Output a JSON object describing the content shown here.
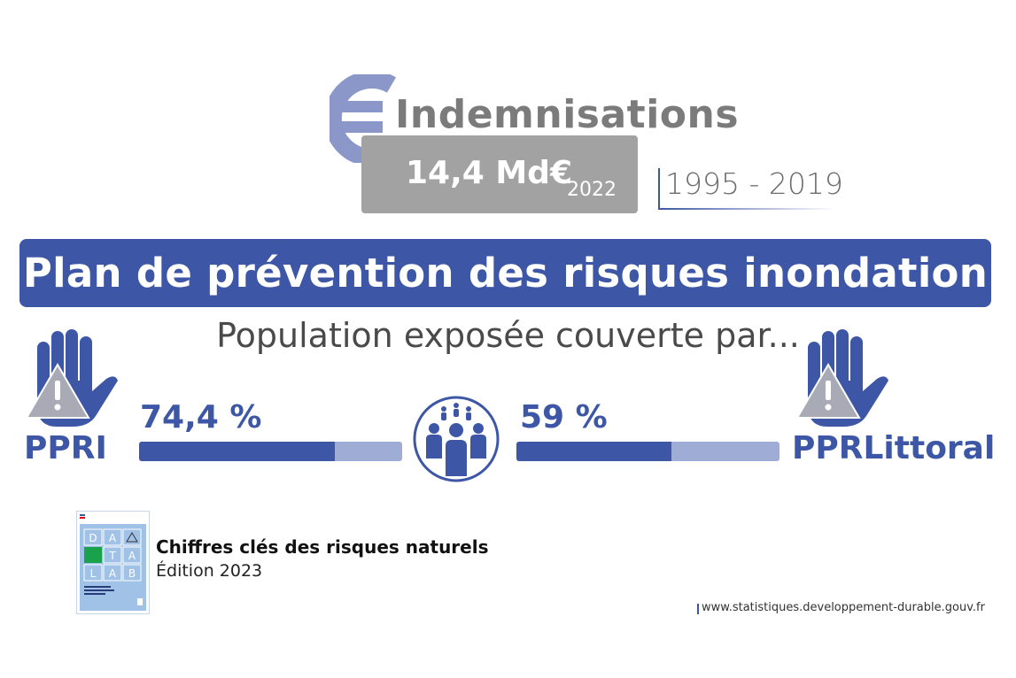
{
  "header": {
    "title": "Indemnisations",
    "amount": "14,4 Md€",
    "amount_year": "2022",
    "period": "1995 - 2019"
  },
  "banner": {
    "title": "Plan de prévention des risques inondation"
  },
  "subtitle": "Population exposée couverte par...",
  "indicators": {
    "left": {
      "acronym": "PPRI",
      "value_label": "74,4 %",
      "percent": 74.4
    },
    "right": {
      "acronym": "PPRLittoral",
      "value_label": "59 %",
      "percent": 59
    }
  },
  "publication": {
    "title": "Chiffres clés des risques naturels",
    "edition": "Édition 2023",
    "cover_letters": [
      "D",
      "A",
      "T",
      "A",
      "L",
      "A",
      "B"
    ]
  },
  "footer": {
    "url": "www.statistiques.developpement-durable.gouv.fr"
  },
  "icons": {
    "euro": "euro-icon",
    "hand": "raised-hand-warning-icon",
    "people": "people-group-icon"
  },
  "colors": {
    "primary_blue": "#3d57a6",
    "light_blue": "#9fadd6",
    "euro_blue": "#8a97c8",
    "grey": "#a2a2a2"
  }
}
